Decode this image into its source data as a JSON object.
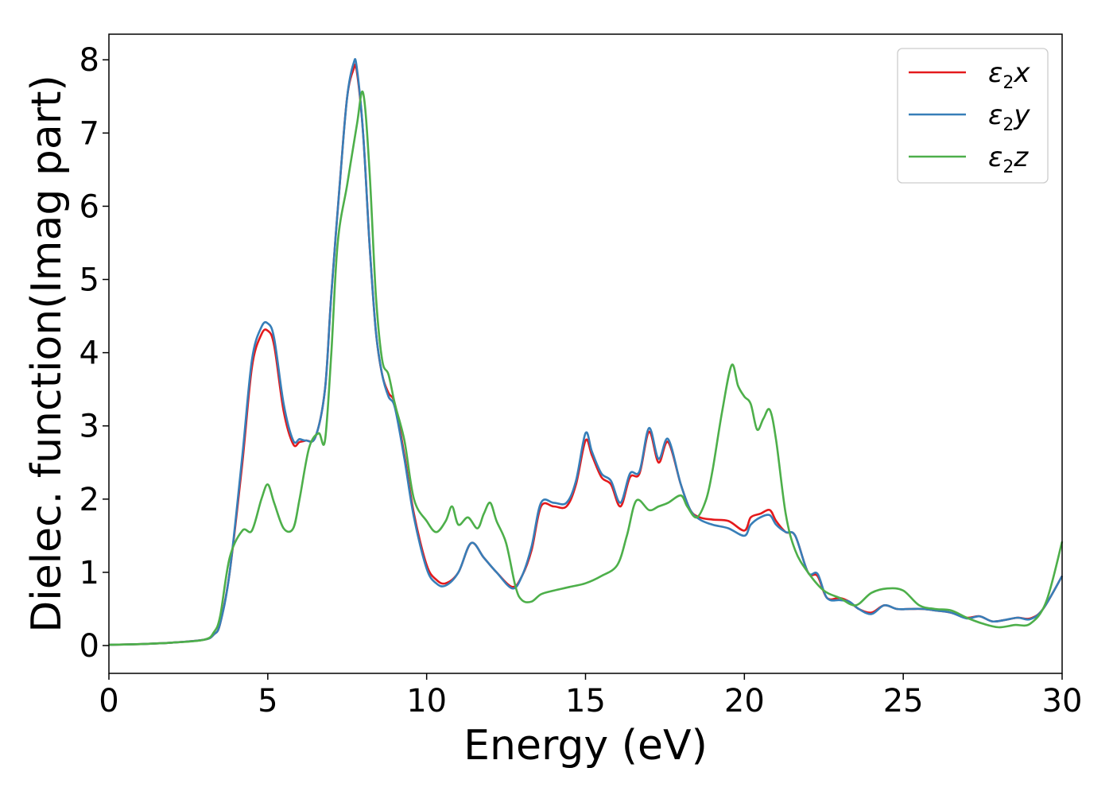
{
  "chart_data": {
    "type": "line",
    "title": "",
    "xlabel": "Energy (eV)",
    "ylabel": "Dielec. function(Imag part)",
    "xlim": [
      0,
      30
    ],
    "ylim": [
      -0.38,
      8.35
    ],
    "xticks": [
      0,
      5,
      10,
      15,
      20,
      25,
      30
    ],
    "yticks": [
      0,
      1,
      2,
      3,
      4,
      5,
      6,
      7,
      8
    ],
    "grid": false,
    "legend_position": "top-right",
    "series": [
      {
        "name": "ε₂x",
        "legend": {
          "base": "ε",
          "sub": "2",
          "axis": "x"
        },
        "color": "#e41a1c",
        "x": [
          0,
          1,
          2,
          3,
          3.3,
          3.5,
          3.8,
          4.2,
          4.5,
          4.8,
          5.0,
          5.2,
          5.5,
          5.8,
          6.0,
          6.2,
          6.5,
          6.8,
          7.0,
          7.3,
          7.5,
          7.7,
          7.8,
          8.0,
          8.2,
          8.4,
          8.6,
          8.8,
          9.0,
          9.3,
          9.6,
          10.0,
          10.3,
          10.6,
          11.0,
          11.4,
          11.8,
          12.2,
          12.7,
          13.0,
          13.3,
          13.6,
          14.0,
          14.4,
          14.7,
          15.0,
          15.2,
          15.5,
          15.8,
          16.1,
          16.4,
          16.7,
          17.0,
          17.3,
          17.6,
          18.0,
          18.3,
          18.6,
          19.0,
          19.5,
          20.0,
          20.2,
          20.5,
          20.8,
          21.0,
          21.3,
          21.6,
          22.0,
          22.3,
          22.6,
          23.0,
          23.3,
          23.6,
          24.0,
          24.4,
          24.8,
          25.2,
          25.6,
          26.0,
          26.5,
          27.0,
          27.4,
          27.8,
          28.2,
          28.6,
          29.0,
          29.4,
          30.0
        ],
        "y": [
          0.01,
          0.02,
          0.04,
          0.08,
          0.15,
          0.3,
          1.0,
          2.5,
          3.8,
          4.25,
          4.3,
          4.1,
          3.2,
          2.75,
          2.78,
          2.8,
          2.85,
          3.5,
          4.8,
          6.5,
          7.5,
          7.87,
          7.85,
          7.0,
          5.5,
          4.3,
          3.7,
          3.45,
          3.3,
          2.6,
          1.8,
          1.1,
          0.9,
          0.85,
          1.0,
          1.4,
          1.2,
          1.0,
          0.8,
          0.95,
          1.3,
          1.9,
          1.9,
          1.9,
          2.2,
          2.8,
          2.6,
          2.3,
          2.2,
          1.9,
          2.3,
          2.35,
          2.92,
          2.5,
          2.78,
          2.2,
          1.85,
          1.75,
          1.72,
          1.7,
          1.57,
          1.75,
          1.8,
          1.85,
          1.7,
          1.55,
          1.5,
          1.0,
          0.95,
          0.65,
          0.65,
          0.6,
          0.5,
          0.45,
          0.55,
          0.5,
          0.5,
          0.5,
          0.48,
          0.45,
          0.38,
          0.4,
          0.33,
          0.35,
          0.38,
          0.37,
          0.5,
          0.95
        ]
      },
      {
        "name": "ε₂y",
        "legend": {
          "base": "ε",
          "sub": "2",
          "axis": "y"
        },
        "color": "#377eb8",
        "x": [
          0,
          1,
          2,
          3,
          3.3,
          3.5,
          3.8,
          4.2,
          4.5,
          4.8,
          5.0,
          5.2,
          5.5,
          5.8,
          6.0,
          6.2,
          6.5,
          6.8,
          7.0,
          7.3,
          7.5,
          7.7,
          7.8,
          8.0,
          8.2,
          8.4,
          8.6,
          8.8,
          9.0,
          9.3,
          9.6,
          10.0,
          10.3,
          10.6,
          11.0,
          11.4,
          11.8,
          12.2,
          12.7,
          13.0,
          13.3,
          13.6,
          14.0,
          14.4,
          14.7,
          15.0,
          15.2,
          15.5,
          15.8,
          16.1,
          16.4,
          16.7,
          17.0,
          17.3,
          17.6,
          18.0,
          18.3,
          18.6,
          19.0,
          19.5,
          20.0,
          20.2,
          20.5,
          20.8,
          21.0,
          21.3,
          21.6,
          22.0,
          22.3,
          22.6,
          23.0,
          23.3,
          23.6,
          24.0,
          24.4,
          24.8,
          25.2,
          25.6,
          26.0,
          26.5,
          27.0,
          27.4,
          27.8,
          28.2,
          28.6,
          29.0,
          29.4,
          30.0
        ],
        "y": [
          0.01,
          0.02,
          0.04,
          0.08,
          0.15,
          0.3,
          1.0,
          2.6,
          3.9,
          4.35,
          4.4,
          4.2,
          3.3,
          2.8,
          2.82,
          2.8,
          2.85,
          3.5,
          4.8,
          6.5,
          7.5,
          7.95,
          7.9,
          7.0,
          5.5,
          4.3,
          3.7,
          3.4,
          3.25,
          2.55,
          1.75,
          1.05,
          0.85,
          0.82,
          1.0,
          1.4,
          1.2,
          1.0,
          0.78,
          0.95,
          1.35,
          1.95,
          1.95,
          1.95,
          2.25,
          2.9,
          2.65,
          2.35,
          2.25,
          1.95,
          2.35,
          2.38,
          2.97,
          2.55,
          2.82,
          2.2,
          1.85,
          1.72,
          1.65,
          1.6,
          1.5,
          1.65,
          1.75,
          1.78,
          1.65,
          1.55,
          1.5,
          1.0,
          0.98,
          0.65,
          0.62,
          0.6,
          0.5,
          0.43,
          0.55,
          0.5,
          0.5,
          0.5,
          0.48,
          0.45,
          0.37,
          0.4,
          0.33,
          0.35,
          0.38,
          0.36,
          0.5,
          0.95
        ]
      },
      {
        "name": "ε₂z",
        "legend": {
          "base": "ε",
          "sub": "2",
          "axis": "z"
        },
        "color": "#4daf4a",
        "x": [
          0,
          1,
          2,
          3,
          3.3,
          3.5,
          3.8,
          4.2,
          4.5,
          4.8,
          5.0,
          5.2,
          5.5,
          5.8,
          6.0,
          6.3,
          6.6,
          6.8,
          7.0,
          7.2,
          7.5,
          7.8,
          8.0,
          8.2,
          8.4,
          8.6,
          8.8,
          9.0,
          9.3,
          9.6,
          10.0,
          10.3,
          10.6,
          10.8,
          11.0,
          11.3,
          11.6,
          11.8,
          12.0,
          12.2,
          12.5,
          12.8,
          13.0,
          13.3,
          13.6,
          14.0,
          14.5,
          15.0,
          15.5,
          16.0,
          16.3,
          16.6,
          17.0,
          17.3,
          17.6,
          18.0,
          18.2,
          18.5,
          18.8,
          19.0,
          19.3,
          19.6,
          19.8,
          20.0,
          20.2,
          20.4,
          20.6,
          20.8,
          21.0,
          21.3,
          21.6,
          22.0,
          22.5,
          23.0,
          23.5,
          24.0,
          24.5,
          25.0,
          25.5,
          26.0,
          26.5,
          27.0,
          27.5,
          28.0,
          28.5,
          29.0,
          29.5,
          30.0
        ],
        "y": [
          0.01,
          0.02,
          0.04,
          0.08,
          0.18,
          0.4,
          1.2,
          1.57,
          1.57,
          2.0,
          2.2,
          1.95,
          1.6,
          1.6,
          2.0,
          2.7,
          2.9,
          2.8,
          4.0,
          5.5,
          6.3,
          7.1,
          7.55,
          6.5,
          4.8,
          3.9,
          3.7,
          3.3,
          2.8,
          2.0,
          1.7,
          1.55,
          1.7,
          1.9,
          1.65,
          1.75,
          1.6,
          1.8,
          1.95,
          1.7,
          1.4,
          0.8,
          0.62,
          0.6,
          0.7,
          0.75,
          0.8,
          0.85,
          0.95,
          1.1,
          1.5,
          1.98,
          1.85,
          1.9,
          1.95,
          2.05,
          1.9,
          1.75,
          2.0,
          2.4,
          3.2,
          3.83,
          3.55,
          3.4,
          3.3,
          2.95,
          3.1,
          3.22,
          2.8,
          1.8,
          1.3,
          1.0,
          0.75,
          0.65,
          0.55,
          0.72,
          0.78,
          0.75,
          0.55,
          0.5,
          0.48,
          0.38,
          0.3,
          0.25,
          0.28,
          0.3,
          0.6,
          1.42
        ]
      }
    ]
  }
}
